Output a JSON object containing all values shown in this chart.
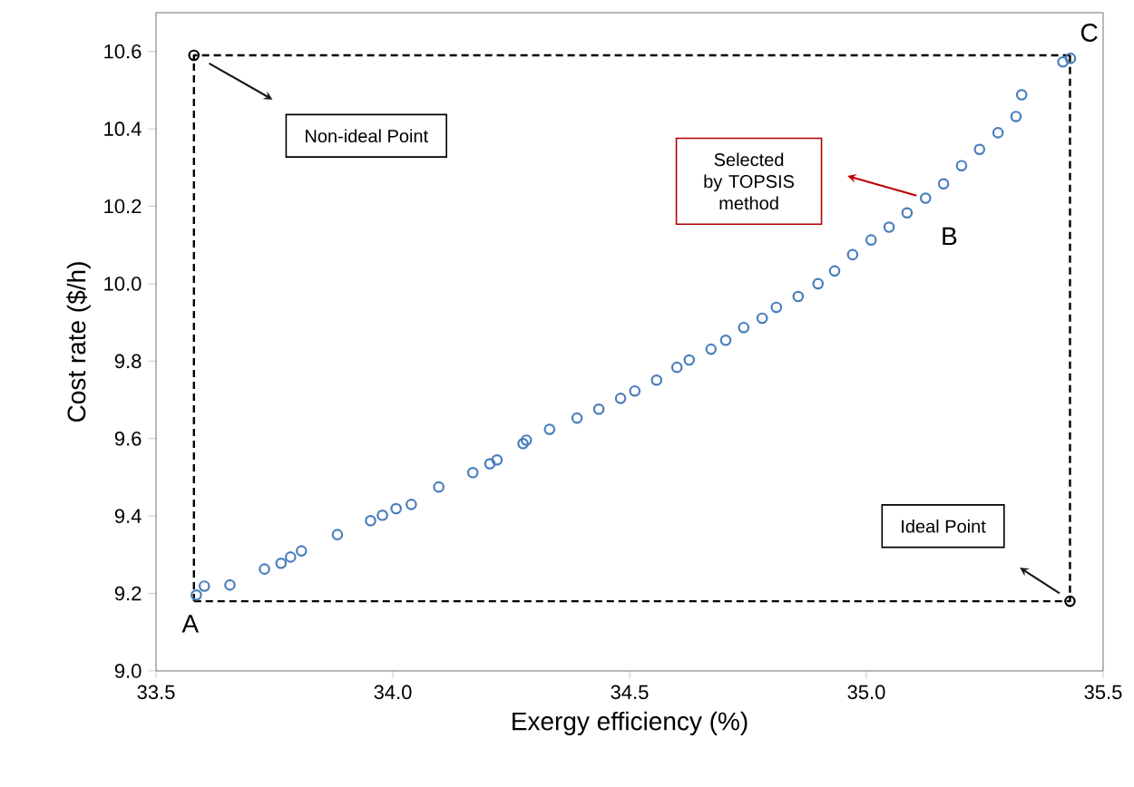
{
  "chart_data": {
    "type": "scatter",
    "xlabel": "Exergy efficiency (%)",
    "ylabel": "Cost rate ($/h)",
    "xlim": [
      33.5,
      35.5
    ],
    "ylim": [
      9.0,
      10.7
    ],
    "xticks": [
      33.5,
      {
        "value": 34,
        "label": "34.0"
      },
      34.5,
      {
        "value": 35,
        "label": "35.0"
      },
      35.5
    ],
    "yticks": [
      {
        "value": 9,
        "label": "9.0"
      },
      9.2,
      9.4,
      9.6,
      9.8,
      {
        "value": 10,
        "label": "10.0"
      },
      10.2,
      10.4,
      10.6
    ],
    "marker": "circle",
    "series": [
      {
        "type": "scatter",
        "color": "#4a7ebb",
        "x": [
          33.585,
          33.602,
          33.656,
          33.729,
          33.764,
          33.784,
          33.807,
          33.883,
          33.953,
          33.978,
          34.007,
          34.039,
          34.097,
          34.169,
          34.205,
          34.22,
          34.275,
          34.282,
          34.331,
          34.389,
          34.435,
          34.481,
          34.511,
          34.557,
          34.6,
          34.626,
          34.672,
          34.703,
          34.741,
          34.78,
          34.81,
          34.856,
          34.898,
          34.933,
          34.971,
          35.01,
          35.048,
          35.086,
          35.125,
          35.163,
          35.201,
          35.239,
          35.278,
          35.316,
          35.328,
          35.415,
          35.431
        ],
        "values": [
          9.196,
          9.219,
          9.222,
          9.263,
          9.278,
          9.294,
          9.31,
          9.352,
          9.388,
          9.402,
          9.419,
          9.43,
          9.475,
          9.512,
          9.535,
          9.545,
          9.587,
          9.596,
          9.624,
          9.653,
          9.676,
          9.704,
          9.723,
          9.751,
          9.784,
          9.803,
          9.831,
          9.854,
          9.887,
          9.911,
          9.939,
          9.967,
          10.0,
          10.033,
          10.075,
          10.113,
          10.146,
          10.183,
          10.221,
          10.258,
          10.305,
          10.347,
          10.39,
          10.432,
          10.488,
          10.573,
          10.582
        ]
      },
      {
        "type": "line",
        "color": "#000000",
        "line_style": "dashed",
        "marker": "none",
        "x": [
          33.58,
          33.58,
          35.43
        ],
        "values": [
          9.18,
          10.59,
          10.59
        ]
      },
      {
        "type": "line",
        "color": "#000000",
        "line_style": "dashed",
        "marker": "none",
        "x": [
          33.58,
          35.43,
          35.43
        ],
        "values": [
          9.18,
          9.18,
          10.59
        ]
      },
      {
        "type": "scatter",
        "color": "#000000",
        "x": [
          33.58,
          35.43
        ],
        "values": [
          10.59,
          9.18
        ]
      }
    ],
    "annotations": [
      {
        "text": "A",
        "x": 33.58,
        "y": 9.18
      },
      {
        "text": "B",
        "x": 35.09,
        "y": 10.19
      },
      {
        "text": "C",
        "x": 35.43,
        "y": 10.59
      },
      "Non-ideal Point",
      "Ideal Point",
      "Selected by TOPSIS method"
    ]
  }
}
